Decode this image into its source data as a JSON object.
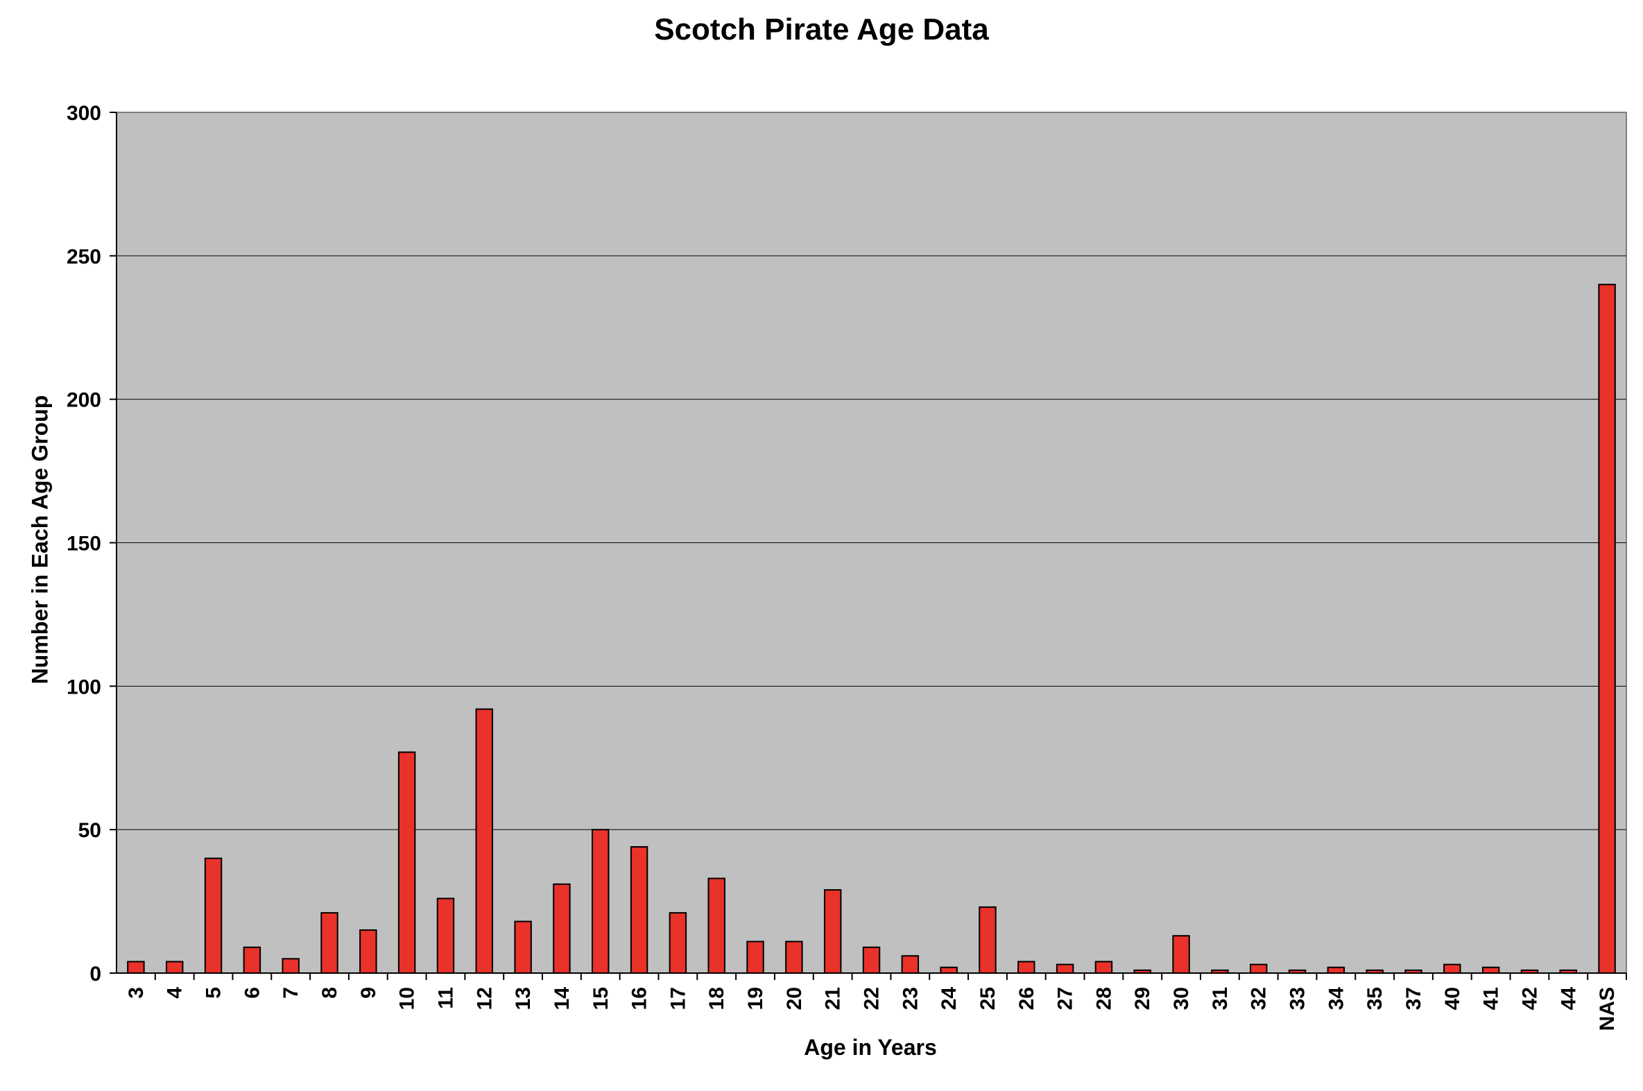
{
  "chart_data": {
    "type": "bar",
    "title": "Scotch Pirate Age Data",
    "xlabel": "Age in Years",
    "ylabel": "Number in Each Age Group",
    "categories": [
      "3",
      "4",
      "5",
      "6",
      "7",
      "8",
      "9",
      "10",
      "11",
      "12",
      "13",
      "14",
      "15",
      "16",
      "17",
      "18",
      "19",
      "20",
      "21",
      "22",
      "23",
      "24",
      "25",
      "26",
      "27",
      "28",
      "29",
      "30",
      "31",
      "32",
      "33",
      "34",
      "35",
      "37",
      "40",
      "41",
      "42",
      "44",
      "NAS"
    ],
    "values": [
      4,
      4,
      40,
      9,
      5,
      21,
      15,
      77,
      26,
      92,
      18,
      31,
      50,
      44,
      21,
      33,
      11,
      11,
      29,
      9,
      6,
      2,
      23,
      4,
      3,
      4,
      1,
      13,
      1,
      3,
      1,
      2,
      1,
      1,
      3,
      2,
      1,
      1,
      240
    ],
    "ylim": [
      0,
      300
    ],
    "yticks": [
      0,
      50,
      100,
      150,
      200,
      250,
      300
    ],
    "grid": true,
    "legend": "none",
    "colors": {
      "bar_fill": "#e8322a",
      "bar_stroke": "#000000",
      "plot_background": "#c0c0c0",
      "gridline": "#000000"
    }
  }
}
